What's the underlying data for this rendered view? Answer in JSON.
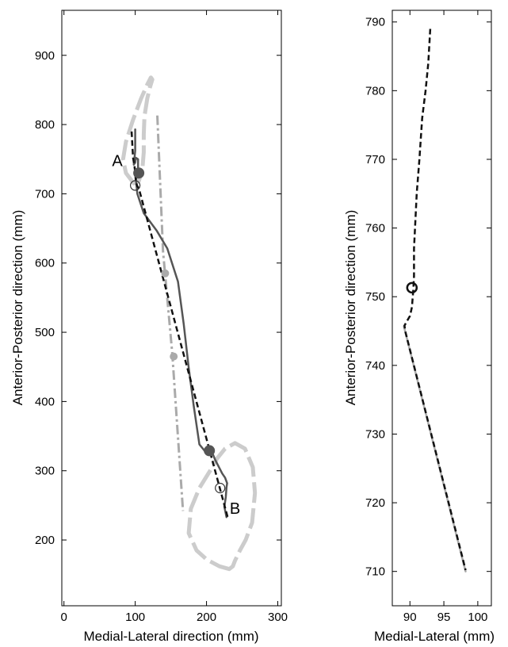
{
  "chart_data": [
    {
      "type": "line",
      "xlabel": "Medial-Lateral direction (mm)",
      "ylabel": "Anterior-Posterior direction (mm)",
      "xlim": [
        -3,
        305
      ],
      "ylim": [
        105,
        965
      ],
      "xticks": [
        0,
        100,
        200,
        300
      ],
      "yticks": [
        200,
        300,
        400,
        500,
        600,
        700,
        800,
        900
      ],
      "grid": false,
      "annotations": [
        {
          "text": "A",
          "x": 75,
          "y": 740
        },
        {
          "text": "B",
          "x": 240,
          "y": 238
        }
      ],
      "series": [
        {
          "style": "outline-dashed-light",
          "color": "#cccccc",
          "closed": true,
          "x": [
            98,
            87,
            83,
            87,
            97,
            108,
            117,
            122,
            124,
            121,
            117,
            113,
            112,
            112,
            110,
            105,
            98
          ],
          "y": [
            715,
            730,
            750,
            775,
            807,
            837,
            858,
            868,
            865,
            855,
            838,
            812,
            786,
            760,
            735,
            718,
            715
          ]
        },
        {
          "style": "outline-dashed-light",
          "color": "#cccccc",
          "closed": true,
          "x": [
            232,
            218,
            200,
            186,
            175,
            178,
            190,
            205,
            215,
            226,
            240,
            254,
            265,
            268,
            264,
            255,
            247,
            240,
            237,
            232
          ],
          "y": [
            158,
            162,
            172,
            185,
            210,
            245,
            275,
            300,
            318,
            332,
            340,
            332,
            305,
            268,
            225,
            200,
            185,
            170,
            162,
            158
          ]
        },
        {
          "style": "dash-dot",
          "color": "#aaaaaa",
          "x": [
            131,
            139,
            152,
            167
          ],
          "y": [
            813,
            617,
            469,
            242
          ]
        },
        {
          "style": "solid",
          "color": "#555555",
          "x": [
            100,
            100,
            98,
            100,
            101,
            104,
            104,
            101,
            103,
            112,
            130,
            145,
            160,
            168,
            175,
            182,
            190,
            198,
            203,
            208,
            212,
            218,
            222,
            226,
            229,
            228,
            227,
            225,
            228
          ],
          "y": [
            793,
            762,
            742,
            745,
            752,
            750,
            733,
            720,
            700,
            672,
            647,
            621,
            573,
            512,
            449,
            394,
            338,
            328,
            328,
            326,
            316,
            304,
            296,
            290,
            282,
            276,
            262,
            248,
            233
          ]
        },
        {
          "style": "dashed",
          "color": "#111111",
          "x": [
            95,
            96,
            97,
            99,
            100,
            101,
            103,
            105,
            230
          ],
          "y": [
            790,
            770,
            752,
            740,
            730,
            717,
            711,
            708,
            232
          ]
        }
      ],
      "markers": [
        {
          "type": "filled-circle",
          "color": "#555555",
          "x": 105,
          "y": 730
        },
        {
          "type": "filled-circle",
          "color": "#555555",
          "x": 204,
          "y": 329
        },
        {
          "type": "open-circle",
          "color": "#333333",
          "x": 100,
          "y": 712
        },
        {
          "type": "open-circle",
          "color": "#333333",
          "x": 219,
          "y": 275
        },
        {
          "type": "filled-circle",
          "color": "#aaaaaa",
          "x": 142,
          "y": 585
        },
        {
          "type": "filled-circle",
          "color": "#aaaaaa",
          "x": 154,
          "y": 465
        }
      ]
    },
    {
      "type": "line",
      "xlabel": "Medial-Lateral (mm)",
      "ylabel": "Anterior-Posterior direction (mm)",
      "xlim": [
        87.4,
        102
      ],
      "ylim": [
        705,
        791.7
      ],
      "xticks": [
        90,
        95,
        100
      ],
      "yticks": [
        710,
        720,
        730,
        740,
        750,
        760,
        770,
        780,
        790
      ],
      "grid": false,
      "series": [
        {
          "style": "solid",
          "color": "#aaaaaa",
          "x": [
            89.1,
            98.2
          ],
          "y": [
            745.7,
            710.0
          ]
        },
        {
          "style": "dashed",
          "color": "#111111",
          "x": [
            93.0,
            92.7,
            92.3,
            91.8,
            91.4,
            91.0,
            90.8,
            90.6,
            90.6,
            90.5,
            90.3,
            90.0,
            89.6,
            89.2,
            89.3,
            98.2
          ],
          "y": [
            789,
            784,
            780,
            776,
            770,
            765,
            761,
            757,
            753,
            751,
            748.5,
            747.2,
            746.5,
            745.8,
            745.0,
            710.2
          ]
        }
      ],
      "markers": [
        {
          "type": "open-circle",
          "color": "#111111",
          "x": 90.3,
          "y": 751.3
        }
      ]
    }
  ]
}
